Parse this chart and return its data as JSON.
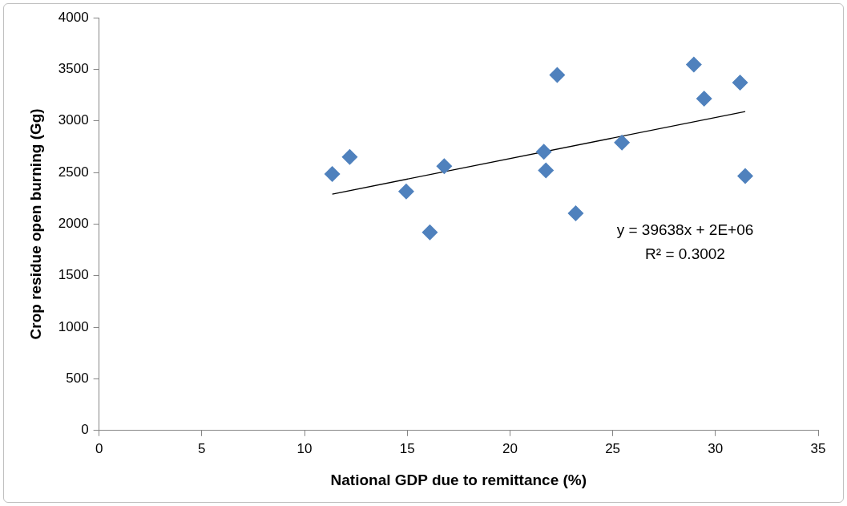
{
  "chart_data": {
    "type": "scatter",
    "xlabel": "National GDP due to remittance (%)",
    "ylabel": "Crop residue open burning (Gg)",
    "xlim": [
      0,
      35
    ],
    "xticks": [
      0,
      5,
      10,
      15,
      20,
      25,
      30,
      35
    ],
    "ylim": [
      0,
      4000
    ],
    "yticks": [
      0,
      500,
      1000,
      1500,
      2000,
      2500,
      3000,
      3500,
      4000
    ],
    "grid": false,
    "legend": false,
    "marker": "diamond",
    "series": [
      {
        "color": "#4f81bd",
        "x": [
          11.35,
          12.2,
          14.95,
          16.1,
          16.8,
          21.65,
          21.75,
          22.3,
          23.2,
          25.45,
          28.95,
          29.45,
          31.2,
          31.45
        ],
        "values": [
          2485,
          2650,
          2315,
          1920,
          2560,
          2700,
          2520,
          3445,
          2105,
          2790,
          3545,
          3215,
          3370,
          2465
        ]
      },
      {
        "type": "line",
        "color": "#000000",
        "marker": "none",
        "line_style": "solid",
        "x": [
          11.35,
          31.45
        ],
        "values": [
          2290,
          3090
        ]
      }
    ],
    "annotations": [
      "y = 39638x + 2E+06",
      "R² = 0.3002"
    ]
  }
}
